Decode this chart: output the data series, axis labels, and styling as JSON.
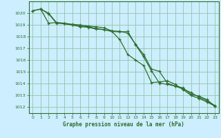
{
  "title": "Graphe pression niveau de la mer (hPa)",
  "background_color": "#cceeff",
  "plot_bg_color": "#cceeff",
  "grid_color": "#88bb99",
  "line_color": "#2d6e2d",
  "spine_color": "#2d6e2d",
  "xlim": [
    -0.5,
    23.5
  ],
  "ylim": [
    1011.5,
    1021.0
  ],
  "yticks": [
    1012,
    1013,
    1014,
    1015,
    1016,
    1017,
    1018,
    1019,
    1020
  ],
  "xticks": [
    0,
    1,
    2,
    3,
    4,
    5,
    6,
    7,
    8,
    9,
    10,
    11,
    12,
    13,
    14,
    15,
    16,
    17,
    18,
    19,
    20,
    21,
    22,
    23
  ],
  "series1_x": [
    0,
    1,
    2,
    3,
    4,
    5,
    6,
    7,
    8,
    9,
    10,
    11,
    12,
    13,
    14,
    15,
    16,
    17,
    18,
    19,
    20,
    21,
    22,
    23
  ],
  "series1_y": [
    1020.2,
    1020.35,
    1019.95,
    1019.15,
    1019.1,
    1019.0,
    1018.9,
    1018.85,
    1018.7,
    1018.6,
    1018.45,
    1017.75,
    1016.5,
    1016.0,
    1015.55,
    1014.1,
    1014.15,
    1014.25,
    1013.95,
    1013.5,
    1013.0,
    1012.75,
    1012.45,
    1012.1
  ],
  "series2_x": [
    0,
    1,
    2,
    3,
    4,
    5,
    6,
    7,
    8,
    9,
    10,
    11,
    12,
    13,
    14,
    15,
    16,
    17,
    18,
    19,
    20,
    21,
    22,
    23
  ],
  "series2_y": [
    1020.2,
    1020.35,
    1020.0,
    1019.2,
    1019.15,
    1019.05,
    1019.0,
    1018.9,
    1018.85,
    1018.75,
    1018.5,
    1018.45,
    1018.3,
    1017.35,
    1016.5,
    1015.25,
    1015.05,
    1014.05,
    1013.8,
    1013.65,
    1013.1,
    1012.95,
    1012.65,
    1012.1
  ],
  "series3_x": [
    1,
    2,
    3,
    4,
    5,
    6,
    7,
    8,
    9,
    10,
    11,
    12,
    13,
    14,
    15,
    16,
    17,
    18,
    19,
    20,
    21,
    22,
    23
  ],
  "series3_y": [
    1020.35,
    1019.15,
    1019.2,
    1019.1,
    1019.0,
    1018.85,
    1018.8,
    1018.65,
    1018.6,
    1018.45,
    1018.4,
    1018.45,
    1017.3,
    1016.3,
    1015.1,
    1014.05,
    1013.95,
    1013.8,
    1013.55,
    1013.25,
    1012.85,
    1012.55,
    1012.15
  ]
}
